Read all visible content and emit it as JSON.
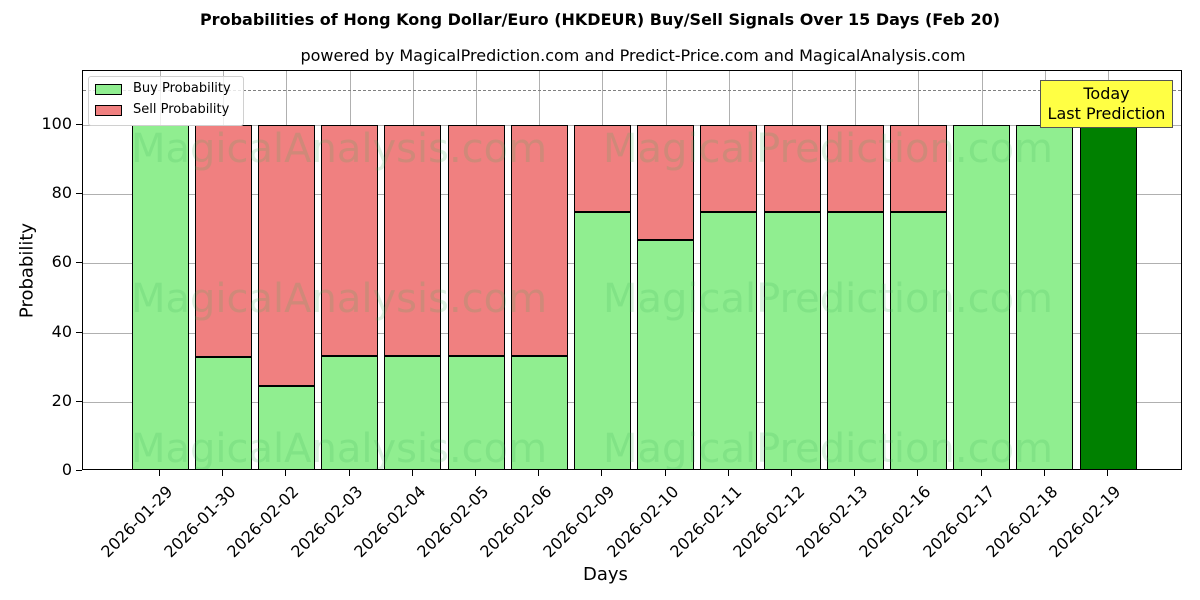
{
  "title": "Probabilities of Hong Kong Dollar/Euro (HKDEUR) Buy/Sell Signals Over 15 Days (Feb 20)",
  "subtitle": "powered by MagicalPrediction.com and Predict-Price.com and MagicalAnalysis.com",
  "legend": {
    "buy": "Buy Probability",
    "sell": "Sell Probability"
  },
  "annotation": {
    "line1": "Today",
    "line2": "Last Prediction"
  },
  "watermarks": [
    "MagicalAnalysis.com",
    "MagicalPrediction.com"
  ],
  "colors": {
    "buy": "#90ee90",
    "sell": "#f08080",
    "today": "#008000",
    "annotation_bg": "#ffff44"
  },
  "chart_data": {
    "type": "bar",
    "stacked": true,
    "title": "Probabilities of Hong Kong Dollar/Euro (HKDEUR) Buy/Sell Signals Over 15 Days (Feb 20)",
    "subtitle": "powered by MagicalPrediction.com and Predict-Price.com and MagicalAnalysis.com",
    "xlabel": "Days",
    "ylabel": "Probability",
    "ylim": [
      0,
      115
    ],
    "yticks": [
      0,
      20,
      40,
      60,
      80,
      100
    ],
    "grid": true,
    "legend_position": "upper left",
    "reference_line": {
      "y": 110,
      "style": "dashed",
      "color": "#808080"
    },
    "categories": [
      "2026-01-29",
      "2026-01-30",
      "2026-02-02",
      "2026-02-03",
      "2026-02-04",
      "2026-02-05",
      "2026-02-06",
      "2026-02-09",
      "2026-02-10",
      "2026-02-11",
      "2026-02-12",
      "2026-02-13",
      "2026-02-16",
      "2026-02-17",
      "2026-02-18",
      "2026-02-19"
    ],
    "series": [
      {
        "name": "Buy Probability",
        "values": [
          100,
          33,
          24.6,
          33.3,
          33.3,
          33.3,
          33.3,
          75,
          66.7,
          75,
          75,
          75,
          75,
          100,
          100,
          100
        ]
      },
      {
        "name": "Sell Probability",
        "values": [
          0,
          67,
          75.4,
          66.7,
          66.7,
          66.7,
          66.7,
          25,
          33.3,
          25,
          25,
          25,
          25,
          0,
          0,
          0
        ]
      }
    ],
    "annotations": [
      {
        "text": "Today\nLast Prediction",
        "x": "2026-02-19"
      }
    ]
  }
}
